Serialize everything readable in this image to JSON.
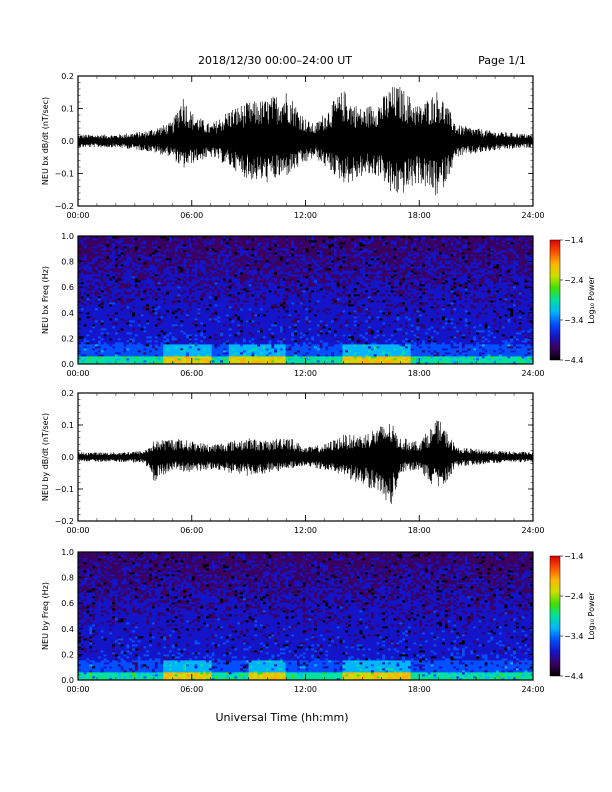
{
  "header": {
    "title": "2018/12/30   00:00–24:00 UT",
    "page": "Page 1/1"
  },
  "xlabel": "Universal Time (hh:mm)",
  "chart_data": [
    {
      "type": "line",
      "ylabel": "NEU bx dB/dt (nT/sec)",
      "xlim": [
        "00:00",
        "24:00"
      ],
      "ylim": [
        -0.2,
        0.2
      ],
      "yticks": [
        "0.2",
        "0.1",
        "0.0",
        "−0.1",
        "−0.2"
      ],
      "xticks": [
        "00:00",
        "06:00",
        "12:00",
        "18:00",
        "24:00"
      ],
      "series": [
        {
          "x": [
            "00:00",
            "02:00",
            "03:30",
            "05:00",
            "05:30",
            "06:00",
            "07:00",
            "08:00",
            "09:00",
            "10:00",
            "11:00",
            "12:00",
            "12:30",
            "13:00",
            "14:00",
            "14:30",
            "15:00",
            "16:00",
            "16:30",
            "17:00",
            "18:00",
            "19:00",
            "20:00",
            "21:00",
            "22:00",
            "24:00"
          ],
          "max": [
            0.02,
            0.02,
            0.03,
            0.06,
            0.15,
            0.09,
            0.05,
            0.1,
            0.12,
            0.13,
            0.16,
            0.07,
            0.05,
            0.09,
            0.16,
            0.12,
            0.1,
            0.13,
            0.17,
            0.17,
            0.11,
            0.16,
            0.05,
            0.04,
            0.03,
            0.02
          ],
          "min": [
            -0.02,
            -0.02,
            -0.03,
            -0.05,
            -0.09,
            -0.07,
            -0.05,
            -0.08,
            -0.12,
            -0.13,
            -0.11,
            -0.07,
            -0.05,
            -0.08,
            -0.13,
            -0.13,
            -0.11,
            -0.11,
            -0.17,
            -0.17,
            -0.13,
            -0.18,
            -0.05,
            -0.04,
            -0.03,
            -0.02
          ]
        }
      ]
    },
    {
      "type": "heatmap",
      "ylabel": "NEU bx Freq (Hz)",
      "xlim": [
        "00:00",
        "24:00"
      ],
      "ylim": [
        0.0,
        1.0
      ],
      "yticks": [
        "1.0",
        "0.8",
        "0.6",
        "0.4",
        "0.2",
        "0.0"
      ],
      "xticks": [
        "00:00",
        "06:00",
        "12:00",
        "18:00",
        "24:00"
      ],
      "colorbar": {
        "label": "Log₁₀ Power",
        "ticks": [
          "−1.4",
          "−2.4",
          "−3.4",
          "−4.4"
        ],
        "range": [
          -4.4,
          -1.4
        ]
      },
      "colormap": [
        "#000000",
        "#3b0060",
        "#1414c8",
        "#0050ff",
        "#00b4ff",
        "#00e0a0",
        "#40e000",
        "#c8e000",
        "#ffb400",
        "#ff5000",
        "#e00000"
      ],
      "low_freq_enhancement": {
        "freq_max": 0.05,
        "strong_times": [
          "04:30-07:00",
          "08:00-11:00",
          "14:00-17:30"
        ]
      }
    },
    {
      "type": "line",
      "ylabel": "NEU by dB/dt (nT/sec)",
      "xlim": [
        "00:00",
        "24:00"
      ],
      "ylim": [
        -0.2,
        0.2
      ],
      "yticks": [
        "0.2",
        "0.1",
        "0.0",
        "−0.1",
        "−0.2"
      ],
      "xticks": [
        "00:00",
        "06:00",
        "12:00",
        "18:00",
        "24:00"
      ],
      "series": [
        {
          "x": [
            "00:00",
            "02:00",
            "03:30",
            "04:00",
            "05:00",
            "06:00",
            "07:00",
            "08:00",
            "09:00",
            "10:00",
            "11:00",
            "12:00",
            "13:00",
            "14:00",
            "15:00",
            "16:00",
            "16:30",
            "17:00",
            "18:00",
            "19:00",
            "20:00",
            "22:00",
            "24:00"
          ],
          "max": [
            0.015,
            0.015,
            0.02,
            0.05,
            0.06,
            0.05,
            0.04,
            0.05,
            0.06,
            0.05,
            0.07,
            0.03,
            0.04,
            0.07,
            0.07,
            0.1,
            0.11,
            0.06,
            0.05,
            0.12,
            0.03,
            0.02,
            0.015
          ],
          "min": [
            -0.015,
            -0.015,
            -0.02,
            -0.08,
            -0.04,
            -0.05,
            -0.04,
            -0.05,
            -0.06,
            -0.05,
            -0.04,
            -0.03,
            -0.04,
            -0.06,
            -0.09,
            -0.11,
            -0.17,
            -0.05,
            -0.04,
            -0.11,
            -0.03,
            -0.02,
            -0.015
          ]
        }
      ]
    },
    {
      "type": "heatmap",
      "ylabel": "NEU by Freq (Hz)",
      "xlim": [
        "00:00",
        "24:00"
      ],
      "ylim": [
        0.0,
        1.0
      ],
      "yticks": [
        "1.0",
        "0.8",
        "0.6",
        "0.4",
        "0.2",
        "0.0"
      ],
      "xticks": [
        "00:00",
        "06:00",
        "12:00",
        "18:00",
        "24:00"
      ],
      "colorbar": {
        "label": "Log₁₀ Power",
        "ticks": [
          "−1.4",
          "−2.4",
          "−3.4",
          "−4.4"
        ],
        "range": [
          -4.4,
          -1.4
        ]
      },
      "colormap": [
        "#000000",
        "#3b0060",
        "#1414c8",
        "#0050ff",
        "#00b4ff",
        "#00e0a0",
        "#40e000",
        "#c8e000",
        "#ffb400",
        "#ff5000",
        "#e00000"
      ],
      "low_freq_enhancement": {
        "freq_max": 0.05,
        "strong_times": [
          "04:30-07:00",
          "09:00-11:00",
          "14:00-17:30"
        ]
      }
    }
  ]
}
